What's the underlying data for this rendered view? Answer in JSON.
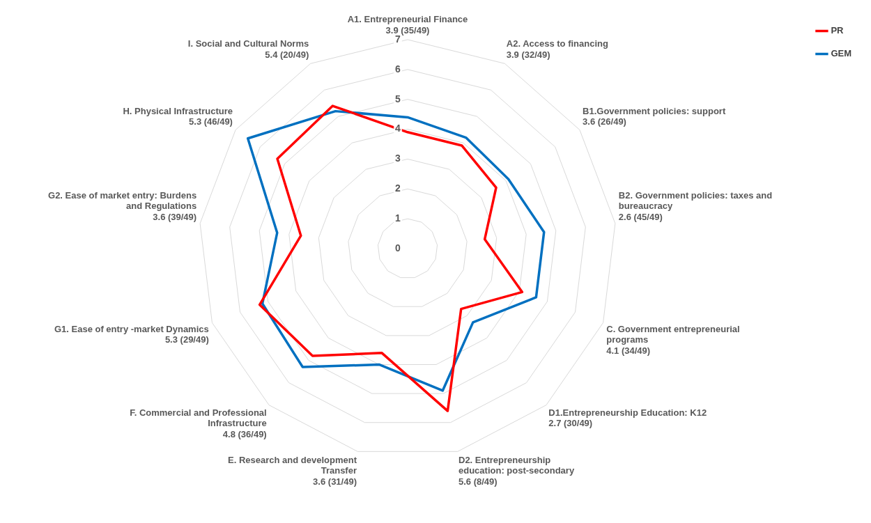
{
  "chart_data": {
    "type": "radar",
    "categories": [
      "A1. Entrepreneurial Finance 3.9 (35/49)",
      "A2. Access to financing 3.9 (32/49)",
      "B1.Government policies: support 3.6 (26/49)",
      "B2. Government policies: taxes and bureaucracy 2.6 (45/49)",
      "C. Government entrepreneurial programs 4.1 (34/49)",
      "D1.Entrepreneurship Education: K12 2.7 (30/49)",
      "D2. Entrepreneurship education: post-secondary 5.6 (8/49)",
      "E. Research and development Transfer 3.6 (31/49)",
      "F. Commercial and Professional Infrastructure 4.8 (36/49)",
      "G1. Ease of entry -market Dynamics 5.3 (29/49)",
      "G2. Ease of market entry: Burdens and Regulations 3.6 (39/49)",
      "H. Physical Infrastructure 5.3 (46/49)",
      "I. Social and Cultural Norms 5.4 (20/49)"
    ],
    "series": [
      {
        "name": "PR",
        "color": "#ff0000",
        "values": [
          3.9,
          3.9,
          3.6,
          2.6,
          4.1,
          2.7,
          5.6,
          3.6,
          4.8,
          5.3,
          3.6,
          5.3,
          5.4
        ]
      },
      {
        "name": "GEM",
        "color": "#0070c0",
        "values": [
          4.4,
          4.2,
          4.1,
          4.6,
          4.6,
          3.3,
          4.9,
          4.0,
          5.3,
          5.2,
          4.4,
          6.5,
          5.2
        ]
      }
    ],
    "ylim": [
      0,
      7
    ],
    "yticks": [
      0,
      1,
      2,
      3,
      4,
      5,
      6,
      7
    ],
    "grid": true,
    "legend": "top right",
    "marker": "none"
  }
}
